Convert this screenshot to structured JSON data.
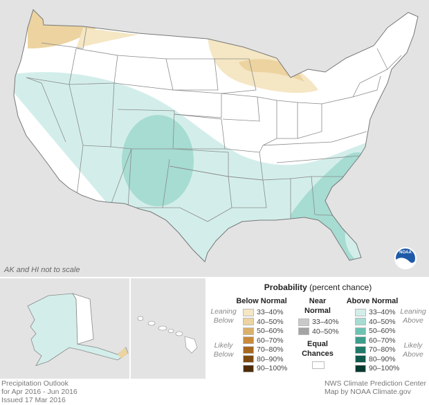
{
  "map": {
    "scale_note": "AK and HI not to scale",
    "agency_logo": "NOAA"
  },
  "legend": {
    "title_bold": "Probability",
    "title_rest": " (percent chance)",
    "below_normal": {
      "header": "Below Normal",
      "leaning_label": [
        "Leaning",
        "Below"
      ],
      "likely_label": [
        "Likely",
        "Below"
      ],
      "items": [
        {
          "label": "33–40%",
          "color": "#f5e6c4"
        },
        {
          "label": "40–50%",
          "color": "#ecd3a0"
        },
        {
          "label": "50–60%",
          "color": "#dbb06a"
        },
        {
          "label": "60–70%",
          "color": "#c98a3a"
        },
        {
          "label": "70–80%",
          "color": "#a8661f"
        },
        {
          "label": "80–90%",
          "color": "#7e4a10"
        },
        {
          "label": "90–100%",
          "color": "#4f2c05"
        }
      ]
    },
    "near_normal": {
      "header": [
        "Near",
        "Normal"
      ],
      "items": [
        {
          "label": "33–40%",
          "color": "#c9c9c9"
        },
        {
          "label": "40–50%",
          "color": "#a4a4a4"
        }
      ],
      "equal_chances": [
        "Equal",
        "Chances"
      ],
      "equal_color": "#ffffff"
    },
    "above_normal": {
      "header": "Above Normal",
      "leaning_label": [
        "Leaning",
        "Above"
      ],
      "likely_label": [
        "Likely",
        "Above"
      ],
      "items": [
        {
          "label": "33–40%",
          "color": "#d3eeea"
        },
        {
          "label": "40–50%",
          "color": "#a6dcd2"
        },
        {
          "label": "50–60%",
          "color": "#6cc3b2"
        },
        {
          "label": "60–70%",
          "color": "#3c9e8c"
        },
        {
          "label": "70–80%",
          "color": "#207a6a"
        },
        {
          "label": "80–90%",
          "color": "#0f5a4c"
        },
        {
          "label": "90–100%",
          "color": "#053a30"
        }
      ]
    }
  },
  "footer": {
    "left": [
      "Precipitation Outlook",
      "for Apr 2016 - Jun 2016",
      "Issued 17 Mar 2016"
    ],
    "right": [
      "NWS Climate Prediction Center",
      "Map by NOAA Climate.gov"
    ]
  }
}
